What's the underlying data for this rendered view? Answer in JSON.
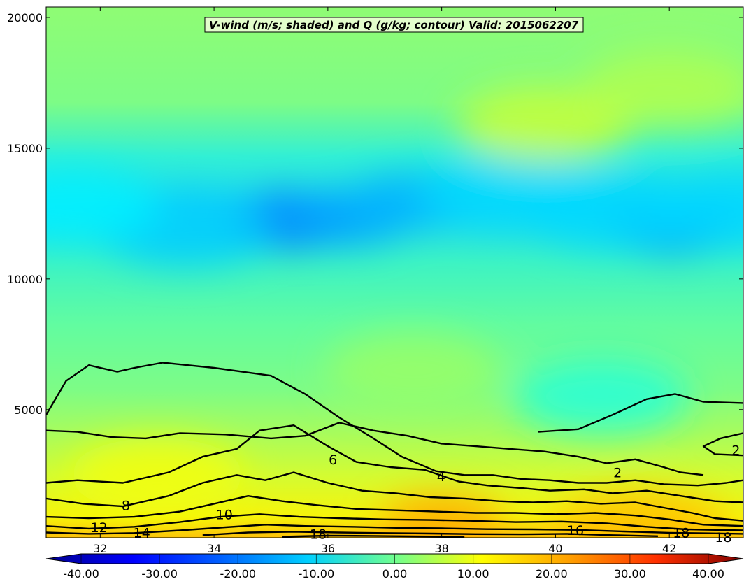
{
  "chart_data": {
    "type": "heatmap",
    "title": "V-wind (m/s; shaded) and Q (g/kg; contour) Valid: 2015062207",
    "xlim": [
      31.05,
      43.3
    ],
    "ylim": [
      100,
      20400
    ],
    "x_ticks": [
      32,
      34,
      36,
      38,
      40,
      42
    ],
    "y_ticks": [
      5000,
      10000,
      15000,
      20000
    ],
    "colorbar": {
      "range": [
        -40,
        40
      ],
      "ticks": [
        -40,
        -30,
        -20,
        -10,
        0,
        10,
        20,
        30,
        40
      ],
      "tick_labels": [
        "-40.00",
        "-30.00",
        "-20.00",
        "-10.00",
        "0.00",
        "10.00",
        "20.00",
        "30.00",
        "40.00"
      ],
      "extend": "both"
    },
    "shaded_regions": [
      {
        "x_center": 35.3,
        "y_center": 12200,
        "v": -22
      },
      {
        "x_center": 36.3,
        "y_center": 12300,
        "v": -17
      },
      {
        "x_center": 37.5,
        "y_center": 13000,
        "v": -16
      },
      {
        "x_center": 33.5,
        "y_center": 11900,
        "v": -14
      },
      {
        "x_center": 42.0,
        "y_center": 12000,
        "v": -19
      },
      {
        "x_center": 41.0,
        "y_center": 12600,
        "v": -13
      },
      {
        "x_center": 39.2,
        "y_center": 13300,
        "v": -13
      },
      {
        "x_center": 31.5,
        "y_center": 12800,
        "v": -11
      },
      {
        "x_center": 43.2,
        "y_center": 12600,
        "v": -13
      },
      {
        "x_center": 39.8,
        "y_center": 15900,
        "v": 6
      },
      {
        "x_center": 42.0,
        "y_center": 17300,
        "v": 4
      },
      {
        "x_center": 37.5,
        "y_center": 6500,
        "v": 2
      },
      {
        "x_center": 40.8,
        "y_center": 5500,
        "v": -7
      },
      {
        "x_center": 33.0,
        "y_center": 2500,
        "v": 9
      },
      {
        "x_center": 38.0,
        "y_center": 700,
        "v": 17
      },
      {
        "x_center": 41.5,
        "y_center": 500,
        "v": 15
      }
    ],
    "contours": [
      {
        "level": 2,
        "label": "2",
        "points": [
          [
            31.05,
            4200
          ],
          [
            31.6,
            4150
          ],
          [
            32.2,
            3950
          ],
          [
            32.8,
            3900
          ],
          [
            33.4,
            4100
          ],
          [
            34.2,
            4050
          ],
          [
            35.0,
            3900
          ],
          [
            35.6,
            4000
          ],
          [
            36.2,
            4500
          ],
          [
            36.8,
            4200
          ],
          [
            37.4,
            4000
          ],
          [
            38.0,
            3700
          ],
          [
            38.6,
            3600
          ],
          [
            39.2,
            3500
          ],
          [
            39.8,
            3400
          ],
          [
            40.4,
            3200
          ],
          [
            40.9,
            2950
          ],
          [
            41.4,
            3100
          ],
          [
            41.9,
            2800
          ],
          [
            42.2,
            2600
          ],
          [
            42.6,
            2500
          ]
        ]
      },
      {
        "level": 2,
        "label": "2",
        "points": [
          [
            39.7,
            4150
          ],
          [
            40.4,
            4250
          ],
          [
            41.0,
            4800
          ],
          [
            41.6,
            5400
          ],
          [
            42.1,
            5600
          ],
          [
            42.6,
            5300
          ],
          [
            43.3,
            5250
          ]
        ]
      },
      {
        "level": 2,
        "label": "2",
        "points": [
          [
            43.3,
            4100
          ],
          [
            42.9,
            3900
          ],
          [
            42.6,
            3600
          ],
          [
            42.8,
            3300
          ],
          [
            43.3,
            3250
          ]
        ]
      },
      {
        "level": 4,
        "label": "4",
        "points": [
          [
            31.05,
            4800
          ],
          [
            31.4,
            6100
          ],
          [
            31.8,
            6700
          ],
          [
            32.3,
            6450
          ],
          [
            32.6,
            6600
          ],
          [
            33.1,
            6800
          ],
          [
            34.0,
            6600
          ],
          [
            35.0,
            6300
          ],
          [
            35.6,
            5600
          ],
          [
            36.2,
            4700
          ],
          [
            36.8,
            3900
          ],
          [
            37.3,
            3200
          ],
          [
            37.9,
            2650
          ],
          [
            38.4,
            2500
          ],
          [
            38.9,
            2500
          ],
          [
            39.4,
            2350
          ],
          [
            39.9,
            2300
          ],
          [
            40.4,
            2200
          ],
          [
            40.9,
            2200
          ],
          [
            41.4,
            2300
          ],
          [
            41.9,
            2150
          ],
          [
            42.5,
            2100
          ],
          [
            43.0,
            2200
          ],
          [
            43.3,
            2300
          ]
        ]
      },
      {
        "level": 6,
        "label": "6",
        "points": [
          [
            31.05,
            2200
          ],
          [
            31.6,
            2300
          ],
          [
            32.4,
            2200
          ],
          [
            33.2,
            2600
          ],
          [
            33.8,
            3200
          ],
          [
            34.4,
            3500
          ],
          [
            34.8,
            4200
          ],
          [
            35.4,
            4400
          ],
          [
            36.0,
            3600
          ],
          [
            36.5,
            3000
          ],
          [
            37.1,
            2800
          ],
          [
            37.7,
            2700
          ],
          [
            38.3,
            2250
          ],
          [
            38.8,
            2100
          ],
          [
            39.4,
            2000
          ],
          [
            39.9,
            1900
          ],
          [
            40.5,
            1950
          ],
          [
            41.0,
            1800
          ],
          [
            41.6,
            1900
          ],
          [
            42.2,
            1700
          ],
          [
            42.8,
            1500
          ],
          [
            43.3,
            1450
          ]
        ]
      },
      {
        "level": 8,
        "label": "8",
        "points": [
          [
            31.05,
            1600
          ],
          [
            31.7,
            1400
          ],
          [
            32.4,
            1300
          ],
          [
            33.2,
            1700
          ],
          [
            33.8,
            2200
          ],
          [
            34.4,
            2500
          ],
          [
            34.9,
            2300
          ],
          [
            35.4,
            2600
          ],
          [
            36.0,
            2200
          ],
          [
            36.6,
            1900
          ],
          [
            37.2,
            1800
          ],
          [
            37.8,
            1650
          ],
          [
            38.4,
            1600
          ],
          [
            39.0,
            1500
          ],
          [
            39.6,
            1450
          ],
          [
            40.2,
            1500
          ],
          [
            40.8,
            1400
          ],
          [
            41.4,
            1450
          ],
          [
            41.9,
            1250
          ],
          [
            42.4,
            1050
          ],
          [
            42.8,
            850
          ],
          [
            43.3,
            750
          ]
        ]
      },
      {
        "level": 10,
        "label": "10",
        "points": [
          [
            31.05,
            900
          ],
          [
            31.8,
            850
          ],
          [
            32.6,
            900
          ],
          [
            33.4,
            1100
          ],
          [
            34.0,
            1400
          ],
          [
            34.6,
            1700
          ],
          [
            35.2,
            1500
          ],
          [
            35.8,
            1350
          ],
          [
            36.5,
            1200
          ],
          [
            37.2,
            1150
          ],
          [
            37.9,
            1100
          ],
          [
            38.6,
            1050
          ],
          [
            39.3,
            1050
          ],
          [
            40.0,
            1000
          ],
          [
            40.7,
            1050
          ],
          [
            41.4,
            950
          ],
          [
            42.0,
            800
          ],
          [
            42.6,
            600
          ],
          [
            43.3,
            550
          ]
        ]
      },
      {
        "level": 12,
        "label": "12",
        "points": [
          [
            31.05,
            550
          ],
          [
            31.8,
            450
          ],
          [
            32.6,
            520
          ],
          [
            33.4,
            700
          ],
          [
            34.1,
            900
          ],
          [
            34.8,
            1000
          ],
          [
            35.5,
            900
          ],
          [
            36.2,
            850
          ],
          [
            37.0,
            800
          ],
          [
            37.8,
            780
          ],
          [
            38.5,
            750
          ],
          [
            39.3,
            700
          ],
          [
            40.1,
            720
          ],
          [
            40.9,
            650
          ],
          [
            41.6,
            520
          ],
          [
            42.3,
            420
          ],
          [
            43.3,
            380
          ]
        ]
      },
      {
        "level": 14,
        "label": "14",
        "points": [
          [
            31.05,
            300
          ],
          [
            31.8,
            250
          ],
          [
            32.6,
            280
          ],
          [
            33.4,
            380
          ],
          [
            34.2,
            500
          ],
          [
            34.9,
            600
          ],
          [
            35.6,
            550
          ],
          [
            36.4,
            520
          ],
          [
            37.2,
            480
          ],
          [
            38.0,
            460
          ],
          [
            38.8,
            430
          ],
          [
            39.6,
            420
          ],
          [
            40.4,
            400
          ],
          [
            41.2,
            340
          ],
          [
            42.0,
            290
          ],
          [
            43.3,
            250
          ]
        ]
      },
      {
        "level": 16,
        "label": "16",
        "points": [
          [
            33.8,
            200
          ],
          [
            34.6,
            300
          ],
          [
            35.4,
            330
          ],
          [
            36.2,
            300
          ],
          [
            37.0,
            280
          ],
          [
            37.8,
            260
          ],
          [
            38.6,
            240
          ],
          [
            39.4,
            230
          ],
          [
            40.2,
            250
          ],
          [
            41.0,
            200
          ],
          [
            41.8,
            160
          ]
        ]
      },
      {
        "level": 18,
        "label": "18",
        "points": [
          [
            35.2,
            140
          ],
          [
            36.0,
            180
          ],
          [
            36.8,
            170
          ],
          [
            37.6,
            150
          ],
          [
            38.4,
            140
          ]
        ]
      }
    ],
    "contour_labels": [
      {
        "text": "2",
        "x": 43.17,
        "y": 3450
      },
      {
        "text": "2",
        "x": 41.09,
        "y": 2600
      },
      {
        "text": "4",
        "x": 37.99,
        "y": 2450
      },
      {
        "text": "6",
        "x": 36.09,
        "y": 3100
      },
      {
        "text": "8",
        "x": 32.45,
        "y": 1350
      },
      {
        "text": "10",
        "x": 34.18,
        "y": 1000
      },
      {
        "text": "12",
        "x": 31.98,
        "y": 500
      },
      {
        "text": "14",
        "x": 32.73,
        "y": 300
      },
      {
        "text": "16",
        "x": 40.35,
        "y": 400
      },
      {
        "text": "18",
        "x": 35.83,
        "y": 250
      },
      {
        "text": "18",
        "x": 42.21,
        "y": 300
      },
      {
        "text": "18",
        "x": 42.95,
        "y": 130
      }
    ]
  }
}
